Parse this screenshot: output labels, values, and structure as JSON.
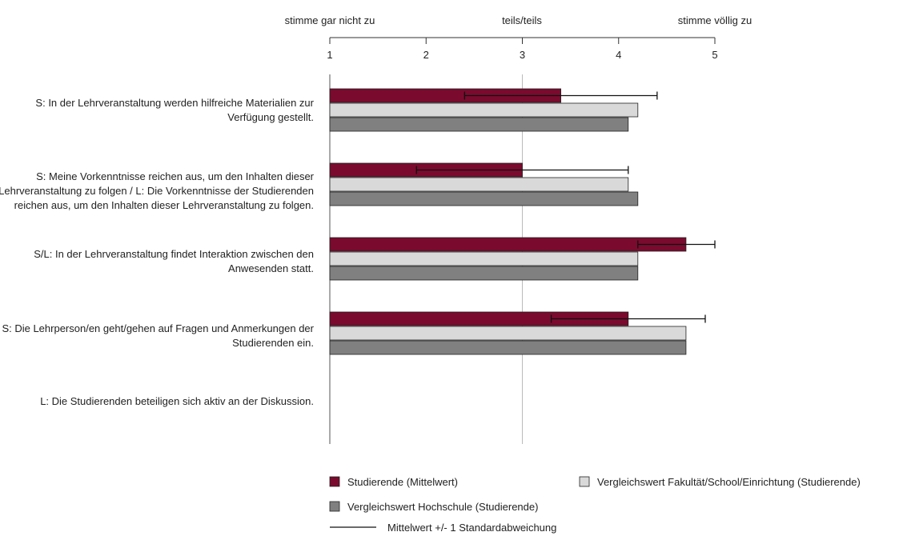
{
  "chart_data": {
    "type": "bar",
    "orientation": "horizontal",
    "scale_labels": {
      "low": "stimme gar nicht zu",
      "mid": "teils/teils",
      "high": "stimme völlig zu"
    },
    "xlim": [
      1,
      5
    ],
    "xticks": [
      "1",
      "2",
      "3",
      "4",
      "5"
    ],
    "categories": [
      "S: In der Lehrveranstaltung werden hilfreiche Materialien zur Verfügung gestellt.",
      "S: Meine Vorkenntnisse reichen aus, um den Inhalten dieser Lehrveranstaltung zu folgen / L: Die Vorkenntnisse der Studierenden reichen aus, um den Inhalten dieser Lehrveranstaltung zu folgen.",
      "S/L: In der Lehrveranstaltung findet Interaktion zwischen den Anwesenden statt.",
      "S: Die Lehrperson/en geht/gehen auf Fragen und Anmerkungen der Studierenden ein.",
      "L: Die Studierenden beteiligen sich aktiv an der Diskussion."
    ],
    "series": [
      {
        "name": "Studierende (Mittelwert)",
        "color": "#7a0b2e",
        "values": [
          3.4,
          3.0,
          4.7,
          4.1,
          null
        ],
        "error_low": [
          2.4,
          1.9,
          4.2,
          3.3,
          null
        ],
        "error_high": [
          4.4,
          4.1,
          5.0,
          4.9,
          null
        ]
      },
      {
        "name": "Vergleichswert Fakultät/School/Einrichtung (Studierende)",
        "color": "#d9d9d9",
        "values": [
          4.2,
          4.1,
          4.2,
          4.7,
          null
        ]
      },
      {
        "name": "Vergleichswert Hochschule (Studierende)",
        "color": "#808080",
        "values": [
          4.1,
          4.2,
          4.2,
          4.7,
          null
        ]
      }
    ],
    "error_legend": "Mittelwert +/- 1 Standardabweichung",
    "gridlines": [
      3
    ]
  }
}
